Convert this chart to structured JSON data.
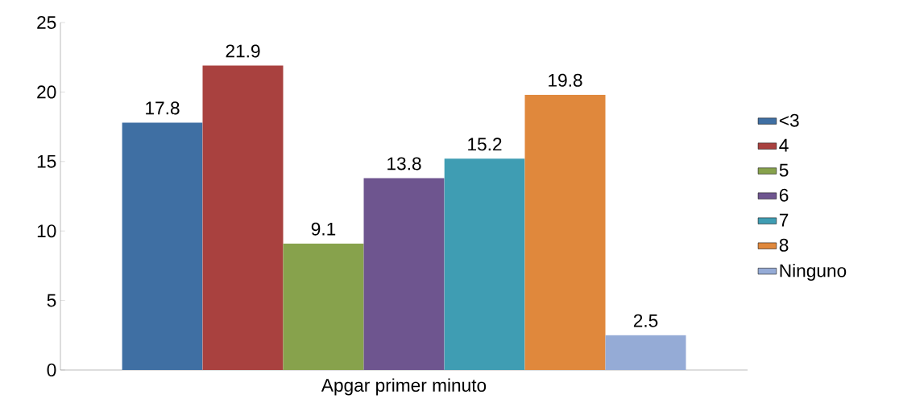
{
  "chart_data": {
    "type": "bar",
    "categories": [
      "Apgar primer minuto"
    ],
    "series": [
      {
        "name": "<3",
        "color": "#3f6fa3",
        "values": [
          17.8
        ]
      },
      {
        "name": "4",
        "color": "#a9413f",
        "values": [
          21.9
        ]
      },
      {
        "name": "5",
        "color": "#87a24c",
        "values": [
          9.1
        ]
      },
      {
        "name": "6",
        "color": "#6e558f",
        "values": [
          13.8
        ]
      },
      {
        "name": "7",
        "color": "#3f9db3",
        "values": [
          15.2
        ]
      },
      {
        "name": "8",
        "color": "#e0883c",
        "values": [
          19.8
        ]
      },
      {
        "name": "Ninguno",
        "color": "#95abd6",
        "values": [
          2.5
        ]
      }
    ],
    "ylim": [
      0,
      25
    ],
    "yticks": [
      0,
      5,
      10,
      15,
      20,
      25
    ],
    "data_labels": true,
    "legend": "right",
    "grid": false
  }
}
